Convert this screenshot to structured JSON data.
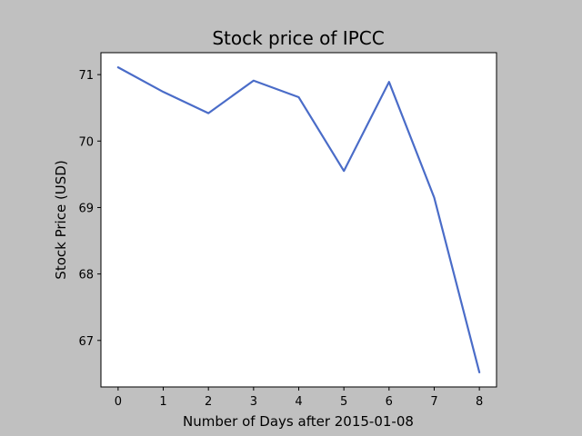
{
  "chart_data": {
    "type": "line",
    "title": "Stock price of IPCC",
    "xlabel": "Number of Days after 2015-01-08",
    "ylabel": "Stock Price (USD)",
    "x": [
      0,
      1,
      2,
      3,
      4,
      5,
      6,
      7,
      8
    ],
    "xticks": [
      0,
      1,
      2,
      3,
      4,
      5,
      6,
      7,
      8
    ],
    "yticks": [
      67,
      68,
      69,
      70,
      71
    ],
    "xlim": [
      -0.38,
      8.38
    ],
    "ylim": [
      66.3,
      71.33
    ],
    "grid": false,
    "series": [
      {
        "values": [
          71.11,
          70.74,
          70.42,
          70.91,
          70.66,
          69.55,
          70.89,
          69.15,
          66.52
        ],
        "color": "#4a6cc8"
      }
    ]
  }
}
